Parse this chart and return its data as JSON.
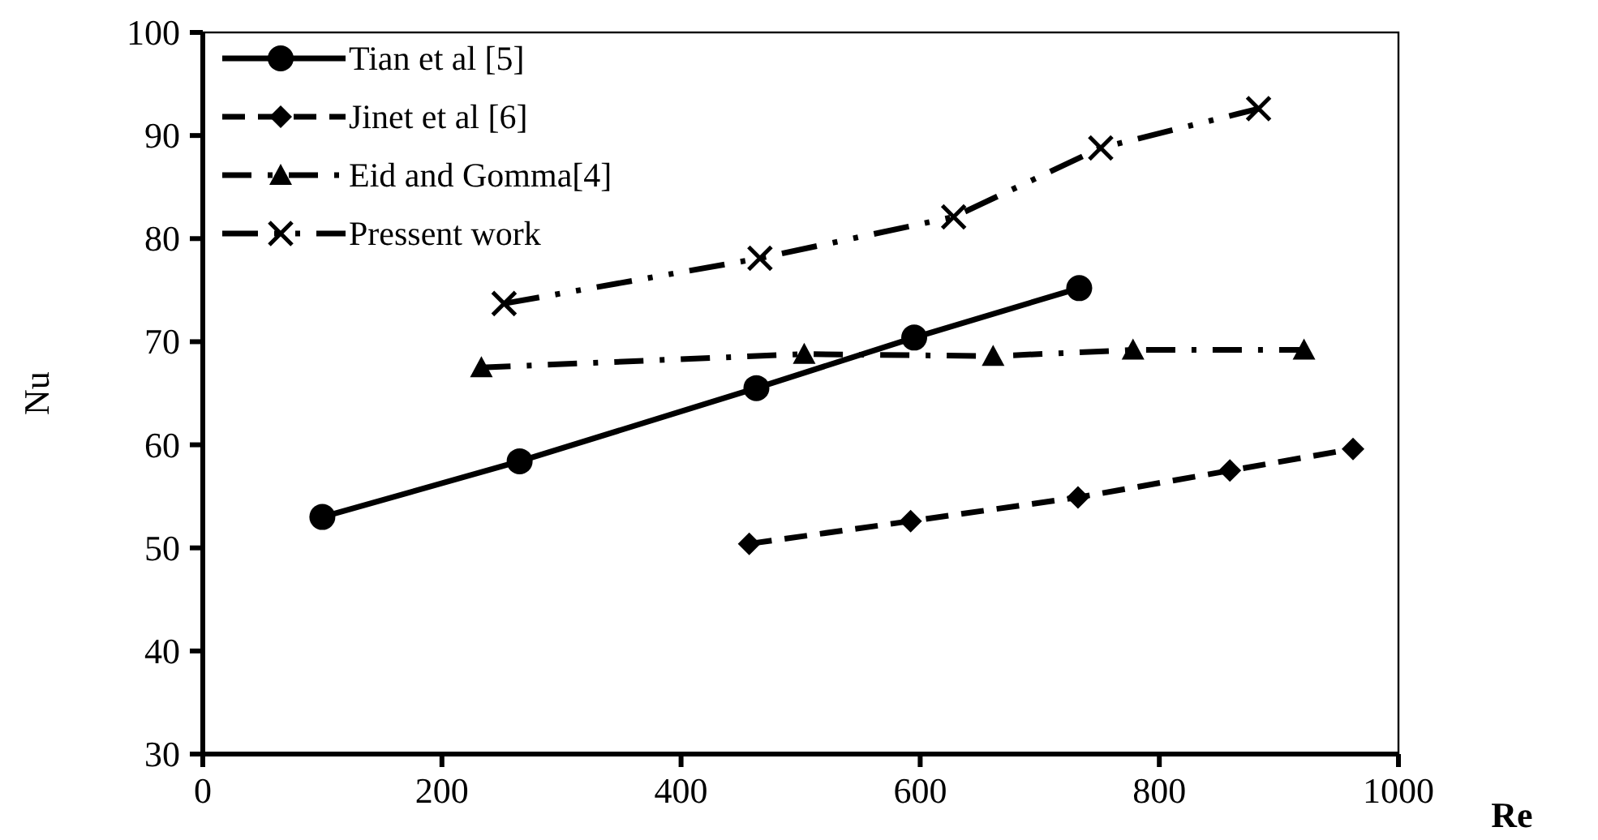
{
  "chart_data": {
    "type": "line",
    "xlabel": "Re",
    "ylabel": "Nu",
    "xlim": [
      0,
      1000
    ],
    "xticks": [
      0,
      200,
      400,
      600,
      800,
      1000
    ],
    "ylim": [
      30,
      100
    ],
    "yticks": [
      30,
      40,
      50,
      60,
      70,
      80,
      90,
      100
    ],
    "grid": false,
    "legend": "top left",
    "series": [
      {
        "name": "Tian et al [5]",
        "color": "#000000",
        "marker": "circle",
        "line_style": "solid",
        "x": [
          100,
          265,
          463,
          595,
          733
        ],
        "values": [
          53.0,
          58.4,
          65.5,
          70.4,
          75.2
        ]
      },
      {
        "name": "Jinet et al [6]",
        "color": "#000000",
        "marker": "diamond",
        "line_style": "dashed",
        "x": [
          457,
          592,
          732,
          859,
          962
        ],
        "values": [
          50.4,
          52.6,
          54.9,
          57.5,
          59.6
        ]
      },
      {
        "name": "Eid and Gomma[4]",
        "color": "#000000",
        "marker": "triangle",
        "line_style": "dashdot",
        "x": [
          233,
          503,
          661,
          778,
          921
        ],
        "values": [
          67.5,
          68.8,
          68.6,
          69.2,
          69.2
        ]
      },
      {
        "name": "Pressent work",
        "color": "#000000",
        "marker": "cross",
        "line_style": "dashdotdot",
        "x": [
          252,
          466,
          628,
          751,
          883
        ],
        "values": [
          73.7,
          78.1,
          82.1,
          88.8,
          92.6
        ]
      }
    ]
  }
}
